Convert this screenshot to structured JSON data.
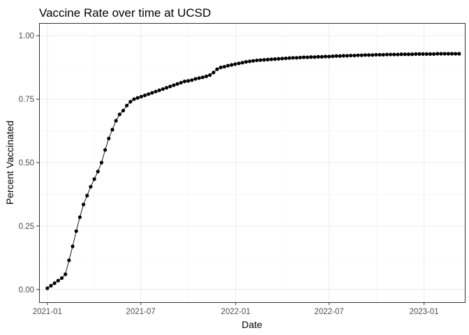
{
  "chart_data": {
    "type": "line",
    "title": "Vaccine Rate over time at UCSD",
    "xlabel": "Date",
    "ylabel": "Percent Vaccinated",
    "x_type": "date",
    "xlim": [
      "2020-12-16",
      "2023-03-21"
    ],
    "ylim": [
      -0.05,
      1.05
    ],
    "x_ticks": [
      "2021-01-01",
      "2021-07-01",
      "2022-01-01",
      "2022-07-01",
      "2023-01-01"
    ],
    "x_tick_labels": [
      "2021-01",
      "2021-07",
      "2022-01",
      "2022-07",
      "2023-01"
    ],
    "y_ticks": [
      0,
      0.25,
      0.5,
      0.75,
      1
    ],
    "y_tick_labels": [
      "0.00",
      "0.25",
      "0.50",
      "0.75",
      "1.00"
    ],
    "grid": true,
    "legend": "none",
    "series_color": "#000000",
    "series": [
      {
        "x": [
          "2021-01-01",
          "2021-01-08",
          "2021-01-15",
          "2021-01-22",
          "2021-01-29",
          "2021-02-05",
          "2021-02-12",
          "2021-02-19",
          "2021-02-26",
          "2021-03-05",
          "2021-03-12",
          "2021-03-19",
          "2021-03-26",
          "2021-04-02",
          "2021-04-09",
          "2021-04-16",
          "2021-04-23",
          "2021-04-30",
          "2021-05-07",
          "2021-05-14",
          "2021-05-21",
          "2021-05-28",
          "2021-06-04",
          "2021-06-11",
          "2021-06-18",
          "2021-06-25",
          "2021-07-02",
          "2021-07-09",
          "2021-07-16",
          "2021-07-23",
          "2021-07-30",
          "2021-08-06",
          "2021-08-13",
          "2021-08-20",
          "2021-08-27",
          "2021-09-03",
          "2021-09-10",
          "2021-09-17",
          "2021-09-24",
          "2021-10-01",
          "2021-10-08",
          "2021-10-15",
          "2021-10-22",
          "2021-10-29",
          "2021-11-05",
          "2021-11-12",
          "2021-11-19",
          "2021-11-26",
          "2021-12-03",
          "2021-12-10",
          "2021-12-17",
          "2021-12-24",
          "2021-12-31",
          "2022-01-07",
          "2022-01-14",
          "2022-01-21",
          "2022-01-28",
          "2022-02-04",
          "2022-02-11",
          "2022-02-18",
          "2022-02-25",
          "2022-03-04",
          "2022-03-11",
          "2022-03-18",
          "2022-03-25",
          "2022-04-01",
          "2022-04-08",
          "2022-04-15",
          "2022-04-22",
          "2022-04-29",
          "2022-05-06",
          "2022-05-13",
          "2022-05-20",
          "2022-05-27",
          "2022-06-03",
          "2022-06-10",
          "2022-06-17",
          "2022-06-24",
          "2022-07-01",
          "2022-07-08",
          "2022-07-15",
          "2022-07-22",
          "2022-07-29",
          "2022-08-05",
          "2022-08-12",
          "2022-08-19",
          "2022-08-26",
          "2022-09-02",
          "2022-09-09",
          "2022-09-16",
          "2022-09-23",
          "2022-09-30",
          "2022-10-07",
          "2022-10-14",
          "2022-10-21",
          "2022-10-28",
          "2022-11-04",
          "2022-11-11",
          "2022-11-18",
          "2022-11-25",
          "2022-12-02",
          "2022-12-09",
          "2022-12-16",
          "2022-12-23",
          "2022-12-30",
          "2023-01-06",
          "2023-01-13",
          "2023-01-20",
          "2023-01-27",
          "2023-02-03",
          "2023-02-10",
          "2023-02-17",
          "2023-02-24",
          "2023-03-03",
          "2023-03-10"
        ],
        "values": [
          0.005,
          0.015,
          0.025,
          0.035,
          0.045,
          0.06,
          0.115,
          0.17,
          0.23,
          0.285,
          0.335,
          0.37,
          0.405,
          0.435,
          0.465,
          0.5,
          0.55,
          0.595,
          0.63,
          0.665,
          0.69,
          0.705,
          0.725,
          0.74,
          0.75,
          0.755,
          0.76,
          0.765,
          0.77,
          0.775,
          0.78,
          0.785,
          0.79,
          0.795,
          0.8,
          0.805,
          0.81,
          0.815,
          0.82,
          0.822,
          0.825,
          0.83,
          0.833,
          0.836,
          0.84,
          0.845,
          0.855,
          0.868,
          0.875,
          0.878,
          0.882,
          0.885,
          0.888,
          0.891,
          0.894,
          0.897,
          0.899,
          0.901,
          0.903,
          0.904,
          0.905,
          0.906,
          0.907,
          0.908,
          0.909,
          0.91,
          0.911,
          0.912,
          0.913,
          0.913,
          0.914,
          0.915,
          0.915,
          0.916,
          0.916,
          0.917,
          0.917,
          0.918,
          0.918,
          0.919,
          0.92,
          0.92,
          0.921,
          0.921,
          0.922,
          0.922,
          0.923,
          0.923,
          0.924,
          0.924,
          0.924,
          0.925,
          0.925,
          0.925,
          0.926,
          0.926,
          0.926,
          0.926,
          0.927,
          0.927,
          0.927,
          0.927,
          0.928,
          0.928,
          0.928,
          0.928,
          0.928,
          0.928,
          0.929,
          0.929,
          0.929,
          0.929,
          0.929,
          0.929,
          0.929
        ]
      }
    ]
  }
}
